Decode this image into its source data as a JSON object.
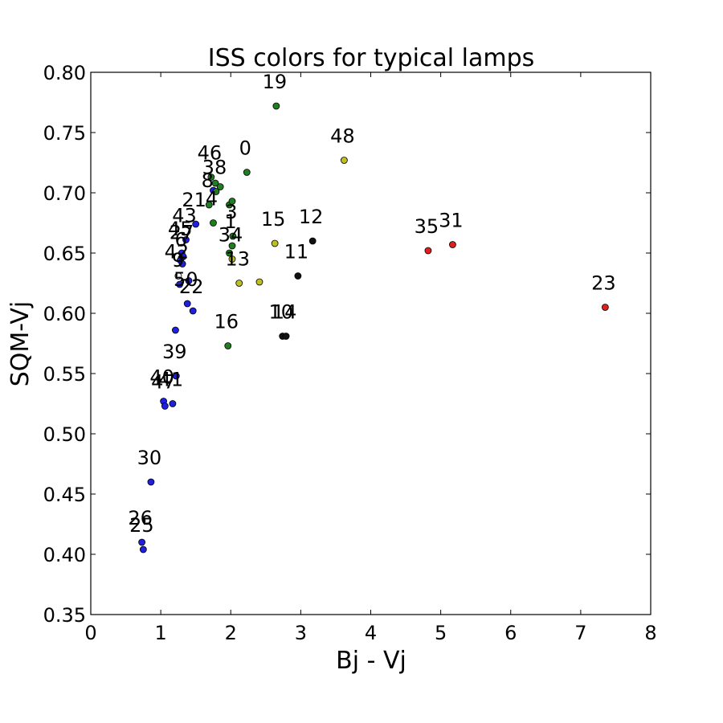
{
  "chart_data": {
    "type": "scatter",
    "title": "ISS colors for typical lamps",
    "xlabel": "Bj - Vj",
    "ylabel": "SQM-Vj",
    "xlim": [
      0,
      8
    ],
    "ylim": [
      0.35,
      0.8
    ],
    "xticks": [
      "0",
      "1",
      "2",
      "3",
      "4",
      "5",
      "6",
      "7",
      "8"
    ],
    "yticks": [
      "0.35",
      "0.40",
      "0.45",
      "0.50",
      "0.55",
      "0.60",
      "0.65",
      "0.70",
      "0.75",
      "0.80"
    ],
    "grid": false,
    "colors": {
      "blue": "#1f1fdf",
      "green": "#1f7f1f",
      "yellow": "#bfbf1f",
      "black": "#111111",
      "red": "#e01f1f",
      "white": "#ffffff"
    },
    "points": [
      {
        "label": "19",
        "x": 2.65,
        "y": 0.772,
        "color": "green"
      },
      {
        "label": "48",
        "x": 3.62,
        "y": 0.727,
        "color": "yellow"
      },
      {
        "label": "0",
        "x": 2.23,
        "y": 0.717,
        "color": "green"
      },
      {
        "label": "46",
        "x": 1.72,
        "y": 0.713,
        "color": "green"
      },
      {
        "label": "",
        "x": 1.78,
        "y": 0.708,
        "color": "green"
      },
      {
        "label": "",
        "x": 1.85,
        "y": 0.705,
        "color": "green"
      },
      {
        "label": "",
        "x": 1.75,
        "y": 0.702,
        "color": "blue"
      },
      {
        "label": "38",
        "x": 1.79,
        "y": 0.701,
        "color": "green"
      },
      {
        "label": "",
        "x": 1.98,
        "y": 0.69,
        "color": "green"
      },
      {
        "label": "",
        "x": 2.02,
        "y": 0.693,
        "color": "green"
      },
      {
        "label": "8",
        "x": 1.69,
        "y": 0.69,
        "color": "green"
      },
      {
        "label": "21",
        "x": 1.5,
        "y": 0.674,
        "color": "blue"
      },
      {
        "label": "4",
        "x": 1.75,
        "y": 0.675,
        "color": "green"
      },
      {
        "label": "43",
        "x": 1.36,
        "y": 0.661,
        "color": "blue"
      },
      {
        "label": "15",
        "x": 2.63,
        "y": 0.658,
        "color": "yellow"
      },
      {
        "label": "12",
        "x": 3.17,
        "y": 0.66,
        "color": "black"
      },
      {
        "label": "35",
        "x": 4.82,
        "y": 0.652,
        "color": "red"
      },
      {
        "label": "31",
        "x": 5.17,
        "y": 0.657,
        "color": "red"
      },
      {
        "label": "3",
        "x": 2.03,
        "y": 0.664,
        "color": "green"
      },
      {
        "label": "1",
        "x": 2.02,
        "y": 0.656,
        "color": "green"
      },
      {
        "label": "",
        "x": 1.98,
        "y": 0.65,
        "color": "green"
      },
      {
        "label": "45",
        "x": 1.3,
        "y": 0.65,
        "color": "blue"
      },
      {
        "label": "27",
        "x": 1.32,
        "y": 0.647,
        "color": "blue"
      },
      {
        "label": "",
        "x": 1.28,
        "y": 0.644,
        "color": "blue"
      },
      {
        "label": "6",
        "x": 1.31,
        "y": 0.641,
        "color": "blue"
      },
      {
        "label": "34",
        "x": 2.02,
        "y": 0.645,
        "color": "yellow"
      },
      {
        "label": "13",
        "x": 2.12,
        "y": 0.625,
        "color": "yellow"
      },
      {
        "label": "",
        "x": 2.41,
        "y": 0.626,
        "color": "yellow"
      },
      {
        "label": "11",
        "x": 2.96,
        "y": 0.631,
        "color": "black"
      },
      {
        "label": "42",
        "x": 1.25,
        "y": 0.631,
        "color": "white"
      },
      {
        "label": "9",
        "x": 1.27,
        "y": 0.624,
        "color": "blue"
      },
      {
        "label": "",
        "x": 1.4,
        "y": 0.627,
        "color": "blue"
      },
      {
        "label": "50",
        "x": 1.38,
        "y": 0.608,
        "color": "blue"
      },
      {
        "label": "23",
        "x": 7.35,
        "y": 0.605,
        "color": "red"
      },
      {
        "label": "22",
        "x": 1.46,
        "y": 0.602,
        "color": "blue"
      },
      {
        "label": "10",
        "x": 2.74,
        "y": 0.581,
        "color": "black"
      },
      {
        "label": "14",
        "x": 2.79,
        "y": 0.581,
        "color": "black"
      },
      {
        "label": "16",
        "x": 1.96,
        "y": 0.573,
        "color": "green"
      },
      {
        "label": "",
        "x": 1.21,
        "y": 0.586,
        "color": "blue"
      },
      {
        "label": "39",
        "x": 1.22,
        "y": 0.548,
        "color": "blue"
      },
      {
        "label": "40",
        "x": 1.04,
        "y": 0.527,
        "color": "blue"
      },
      {
        "label": "41",
        "x": 1.17,
        "y": 0.525,
        "color": "blue"
      },
      {
        "label": "47",
        "x": 1.06,
        "y": 0.523,
        "color": "blue"
      },
      {
        "label": "30",
        "x": 0.86,
        "y": 0.46,
        "color": "blue"
      },
      {
        "label": "26",
        "x": 0.73,
        "y": 0.41,
        "color": "blue"
      },
      {
        "label": "25",
        "x": 0.75,
        "y": 0.404,
        "color": "blue"
      }
    ]
  }
}
